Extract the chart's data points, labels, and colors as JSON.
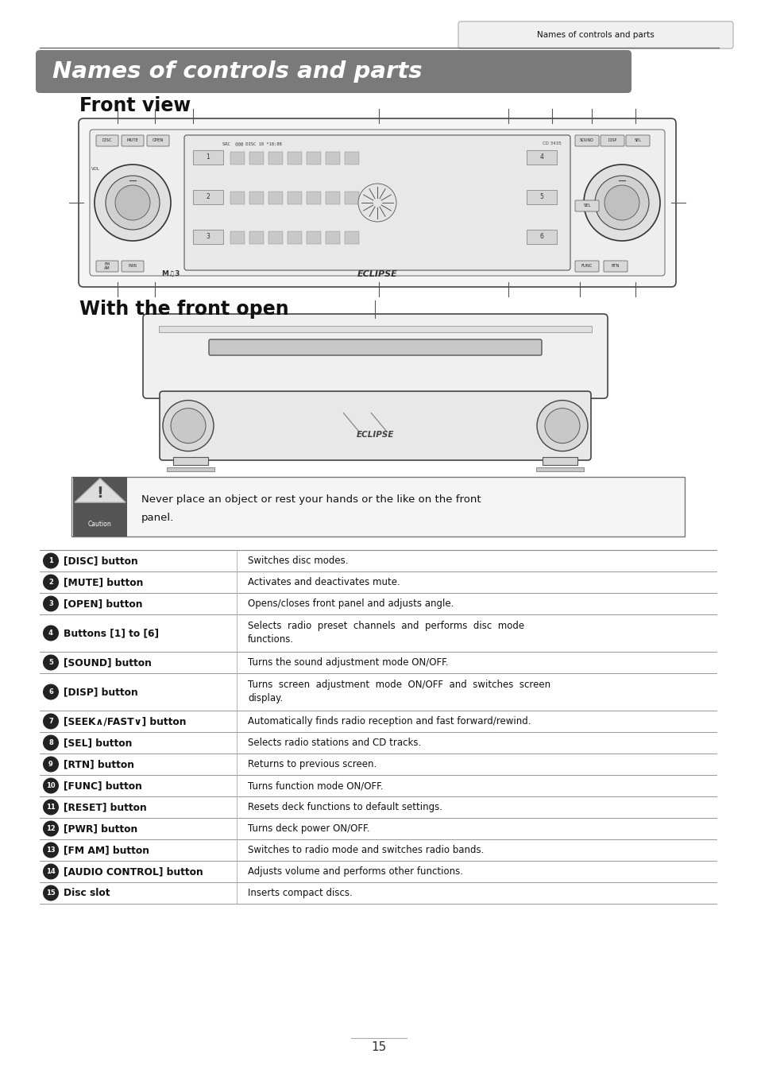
{
  "page_header": "Names of controls and parts",
  "title_banner": "Names of controls and parts",
  "title_banner_bg": "#7a7a7a",
  "title_banner_text_color": "#ffffff",
  "section1_title": "Front view",
  "section2_title": "With the front open",
  "caution_text_line1": "Never place an object or rest your hands or the like on the front",
  "caution_text_line2": "panel.",
  "table_rows": [
    {
      "num": "1",
      "label": "[DISC] button",
      "desc": "Switches disc modes.",
      "two_line": false
    },
    {
      "num": "2",
      "label": "[MUTE] button",
      "desc": "Activates and deactivates mute.",
      "two_line": false
    },
    {
      "num": "3",
      "label": "[OPEN] button",
      "desc": "Opens/closes front panel and adjusts angle.",
      "two_line": false
    },
    {
      "num": "4",
      "label": "Buttons [1] to [6]",
      "desc1": "Selects  radio  preset  channels  and  performs  disc  mode",
      "desc2": "functions.",
      "two_line": true
    },
    {
      "num": "5",
      "label": "[SOUND] button",
      "desc": "Turns the sound adjustment mode ON/OFF.",
      "two_line": false
    },
    {
      "num": "6",
      "label": "[DISP] button",
      "desc1": "Turns  screen  adjustment  mode  ON/OFF  and  switches  screen",
      "desc2": "display.",
      "two_line": true
    },
    {
      "num": "7",
      "label": "[SEEK∧/FAST∨] button",
      "desc": "Automatically finds radio reception and fast forward/rewind.",
      "two_line": false
    },
    {
      "num": "8",
      "label": "[SEL] button",
      "desc": "Selects radio stations and CD tracks.",
      "two_line": false
    },
    {
      "num": "9",
      "label": "[RTN] button",
      "desc": "Returns to previous screen.",
      "two_line": false
    },
    {
      "num": "10",
      "label": "[FUNC] button",
      "desc": "Turns function mode ON/OFF.",
      "two_line": false
    },
    {
      "num": "11",
      "label": "[RESET] button",
      "desc": "Resets deck functions to default settings.",
      "two_line": false
    },
    {
      "num": "12",
      "label": "[PWR] button",
      "desc": "Turns deck power ON/OFF.",
      "two_line": false
    },
    {
      "num": "13",
      "label": "[FM AM] button",
      "desc": "Switches to radio mode and switches radio bands.",
      "two_line": false
    },
    {
      "num": "14",
      "label": "[AUDIO CONTROL] button",
      "desc": "Adjusts volume and performs other functions.",
      "two_line": false
    },
    {
      "num": "15",
      "label": "Disc slot",
      "desc": "Inserts compact discs.",
      "two_line": false
    }
  ],
  "page_number": "15",
  "bg_color": "#ffffff"
}
